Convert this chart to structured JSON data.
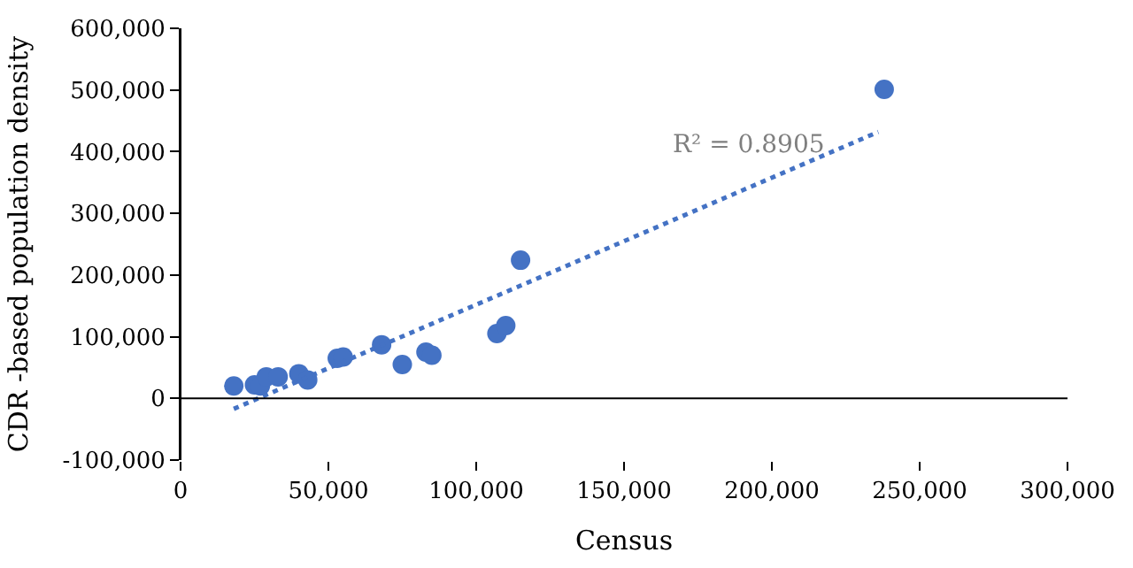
{
  "chart_data": {
    "type": "scatter",
    "xlabel": "Census",
    "ylabel": "CDR -based population density",
    "xlim": [
      0,
      300000
    ],
    "xticks": [
      {
        "value": 0,
        "label": "0"
      },
      {
        "value": 50000,
        "label": "50,000"
      },
      {
        "value": 100000,
        "label": "100,000"
      },
      {
        "value": 150000,
        "label": "150,000"
      },
      {
        "value": 200000,
        "label": "200,000"
      },
      {
        "value": 250000,
        "label": "250,000"
      },
      {
        "value": 300000,
        "label": "300,000"
      }
    ],
    "ylim": [
      -100000,
      600000
    ],
    "yticks": [
      {
        "value": -100000,
        "label": "-100,000"
      },
      {
        "value": 0,
        "label": "0"
      },
      {
        "value": 100000,
        "label": "100,000"
      },
      {
        "value": 200000,
        "label": "200,000"
      },
      {
        "value": 300000,
        "label": "300,000"
      },
      {
        "value": 400000,
        "label": "400,000"
      },
      {
        "value": 500000,
        "label": "500,000"
      },
      {
        "value": 600000,
        "label": "600,000"
      }
    ],
    "series": [
      {
        "marker": "circle",
        "color": "#4472c4",
        "x": [
          18000,
          25000,
          27000,
          29000,
          33000,
          40000,
          43000,
          53000,
          55000,
          68000,
          75000,
          83000,
          85000,
          107000,
          110000,
          115000,
          238000
        ],
        "values": [
          20000,
          22000,
          20000,
          35000,
          35000,
          40000,
          30000,
          65000,
          67000,
          87000,
          55000,
          75000,
          70000,
          105000,
          118000,
          224000,
          501000
        ]
      },
      {
        "type": "line",
        "line_style": "dotted",
        "color": "#4472c4",
        "x": [
          18000,
          236000
        ],
        "values": [
          -17000,
          432000
        ]
      }
    ],
    "ref_lines": [
      {
        "axis": "y",
        "value": 0,
        "color": "#000000"
      }
    ],
    "annotations": [
      "R² = 0.8905"
    ]
  }
}
